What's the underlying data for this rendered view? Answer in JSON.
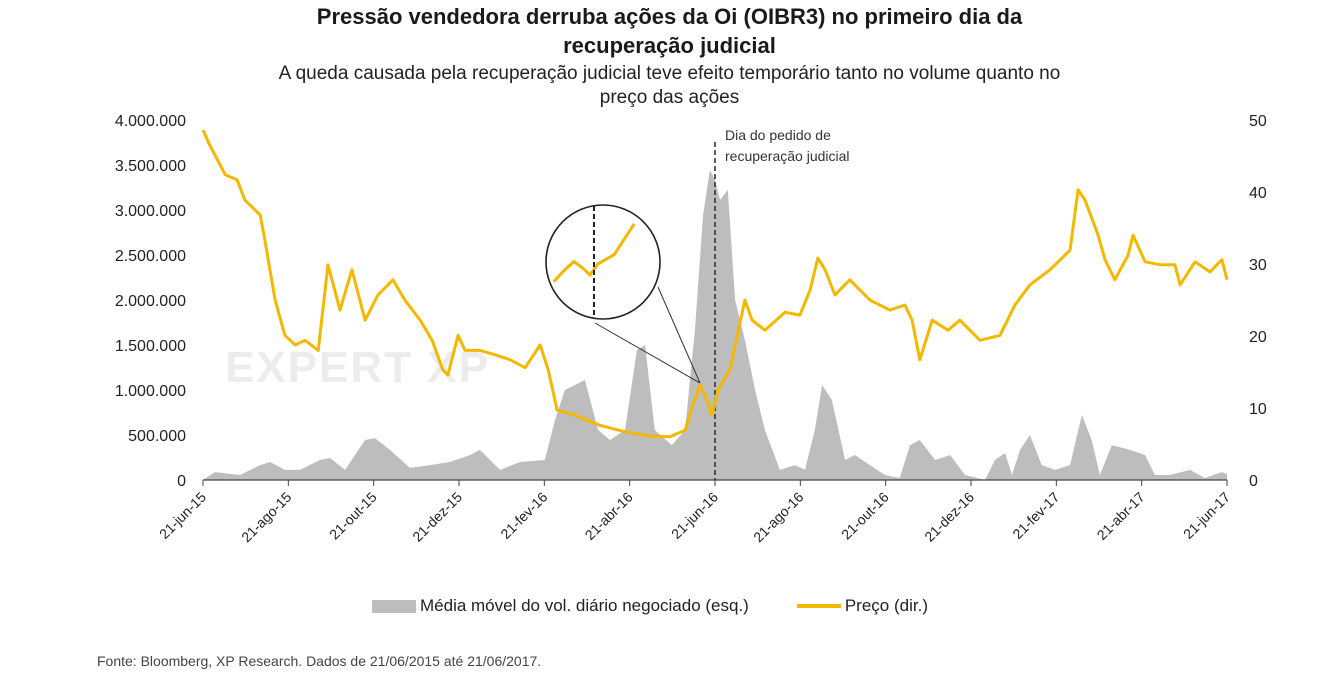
{
  "chart_data": {
    "type": "area+line",
    "title": [
      "Pressão vendedora derruba ações da Oi (OIBR3) no primeiro dia da",
      "recuperação judicial"
    ],
    "subtitle": [
      "A queda causada pela recuperação judicial teve efeito temporário tanto no volume quanto no",
      "preço das ações"
    ],
    "x_unit": "months since 21-jun-15",
    "xlim": [
      0,
      24
    ],
    "x_ticks": [
      0,
      2,
      4,
      6,
      8,
      10,
      12,
      14,
      16,
      18,
      20,
      22,
      24
    ],
    "x_tick_labels": [
      "21-jun-15",
      "21-ago-15",
      "21-out-15",
      "21-dez-15",
      "21-fev-16",
      "21-abr-16",
      "21-jun-16",
      "21-ago-16",
      "21-out-16",
      "21-dez-16",
      "21-fev-17",
      "21-abr-17",
      "21-jun-17"
    ],
    "y_left": {
      "lim": [
        0,
        4000000
      ],
      "ticks": [
        0,
        500000,
        1000000,
        1500000,
        2000000,
        2500000,
        3000000,
        3500000,
        4000000
      ],
      "tick_labels": [
        "0",
        "500.000",
        "1.000.000",
        "1.500.000",
        "2.000.000",
        "2.500.000",
        "3.000.000",
        "3.500.000",
        "4.000.000"
      ]
    },
    "y_right": {
      "lim": [
        0,
        50
      ],
      "ticks": [
        0,
        10,
        20,
        30,
        40,
        50
      ],
      "tick_labels": [
        "0",
        "10",
        "20",
        "30",
        "40",
        "50"
      ]
    },
    "grid": false,
    "legend_position": "bottom",
    "series": [
      {
        "name": "Média móvel do vol. diário negociado (esq.)",
        "type": "area",
        "axis": "left",
        "color": "#bdbdbd",
        "x": [
          0,
          0.28,
          0.87,
          1.34,
          1.57,
          1.92,
          2.27,
          2.74,
          2.98,
          3.33,
          3.8,
          4.03,
          4.38,
          4.85,
          5.32,
          5.79,
          6.26,
          6.49,
          6.96,
          7.43,
          8.01,
          8.25,
          8.48,
          8.72,
          8.95,
          9.26,
          9.54,
          9.89,
          10.17,
          10.36,
          10.59,
          10.99,
          11.3,
          11.53,
          11.72,
          11.88,
          12,
          12.12,
          12.3,
          12.47,
          12.7,
          12.94,
          13.17,
          13.52,
          13.87,
          14.11,
          14.34,
          14.51,
          14.74,
          15.05,
          15.28,
          15.63,
          15.98,
          16.33,
          16.57,
          16.8,
          17.16,
          17.51,
          17.86,
          18.33,
          18.56,
          18.8,
          18.96,
          19.15,
          19.38,
          19.66,
          19.97,
          20.32,
          20.6,
          20.83,
          21.02,
          21.3,
          21.73,
          22.08,
          22.31,
          22.66,
          23.13,
          23.48,
          23.88,
          24
        ],
        "values": [
          0,
          88000,
          56000,
          166000,
          200000,
          112000,
          112000,
          222000,
          244000,
          112000,
          444000,
          466000,
          334000,
          134000,
          166000,
          200000,
          278000,
          334000,
          112000,
          200000,
          222000,
          666000,
          1000000,
          1056000,
          1112000,
          556000,
          444000,
          556000,
          1444000,
          1500000,
          556000,
          388000,
          556000,
          1666000,
          2944000,
          3444000,
          3334000,
          3112000,
          3222000,
          2000000,
          1556000,
          1000000,
          556000,
          112000,
          166000,
          112000,
          556000,
          1056000,
          888000,
          222000,
          278000,
          166000,
          56000,
          22000,
          388000,
          444000,
          222000,
          278000,
          56000,
          0,
          222000,
          300000,
          56000,
          334000,
          500000,
          166000,
          112000,
          166000,
          722000,
          444000,
          56000,
          388000,
          334000,
          278000,
          56000,
          56000,
          112000,
          22000,
          88000,
          66000
        ]
      },
      {
        "name": "Preço (dir.)",
        "type": "line",
        "axis": "right",
        "color": "#f5b800",
        "x": [
          0,
          0.16,
          0.52,
          0.8,
          0.98,
          1.34,
          1.45,
          1.69,
          1.92,
          2.16,
          2.39,
          2.7,
          2.93,
          3.21,
          3.49,
          3.8,
          4.1,
          4.45,
          4.73,
          5.09,
          5.37,
          5.62,
          5.74,
          5.98,
          6.14,
          6.49,
          6.84,
          7.2,
          7.55,
          7.9,
          8.09,
          8.3,
          8.72,
          9.3,
          9.89,
          10.48,
          10.94,
          11.3,
          11.48,
          11.65,
          11.81,
          11.93,
          12.07,
          12.35,
          12.7,
          12.87,
          13.17,
          13.64,
          13.99,
          14.23,
          14.41,
          14.58,
          14.81,
          15.16,
          15.63,
          16.1,
          16.45,
          16.62,
          16.8,
          17.09,
          17.46,
          17.74,
          18.21,
          18.68,
          19.03,
          19.38,
          19.85,
          20.32,
          20.51,
          20.67,
          20.98,
          21.14,
          21.37,
          21.68,
          21.8,
          22.08,
          22.43,
          22.78,
          22.9,
          23.25,
          23.6,
          23.88,
          24
        ],
        "values": [
          48.6,
          46.5,
          42.4,
          41.7,
          38.9,
          36.8,
          33.3,
          25,
          20.1,
          18.75,
          19.4,
          18,
          29.9,
          23.6,
          29.2,
          22.2,
          25.7,
          27.8,
          25,
          22.2,
          19.4,
          15.3,
          14.6,
          20.1,
          18,
          18,
          17.4,
          16.7,
          15.6,
          18.75,
          15.3,
          9.7,
          9,
          7.6,
          6.7,
          6.1,
          6,
          6.9,
          10.4,
          13.2,
          11.1,
          9,
          12.5,
          15.3,
          25,
          22.2,
          20.8,
          23.3,
          22.9,
          26.4,
          30.8,
          29.2,
          25.7,
          27.8,
          25,
          23.6,
          24.3,
          22.2,
          16.7,
          22.2,
          20.8,
          22.2,
          19.4,
          20.1,
          24.3,
          27.1,
          29.2,
          31.9,
          40.3,
          38.9,
          34,
          30.6,
          27.8,
          31.2,
          34,
          30.3,
          29.9,
          29.9,
          27.1,
          30.3,
          28.9,
          30.6,
          27.8
        ]
      }
    ],
    "annotations": [
      {
        "text": [
          "Dia do pedido de",
          "recuperação judicial"
        ],
        "x": 12,
        "style": "dashed-vertical-line"
      },
      {
        "text": "",
        "x_range": [
          11.2,
          12.8
        ],
        "style": "magnifier-inset"
      }
    ],
    "watermark": "EXPERT XP",
    "source": "Fonte: Bloomberg, XP Research. Dados de 21/06/2015 até 21/06/2017."
  }
}
